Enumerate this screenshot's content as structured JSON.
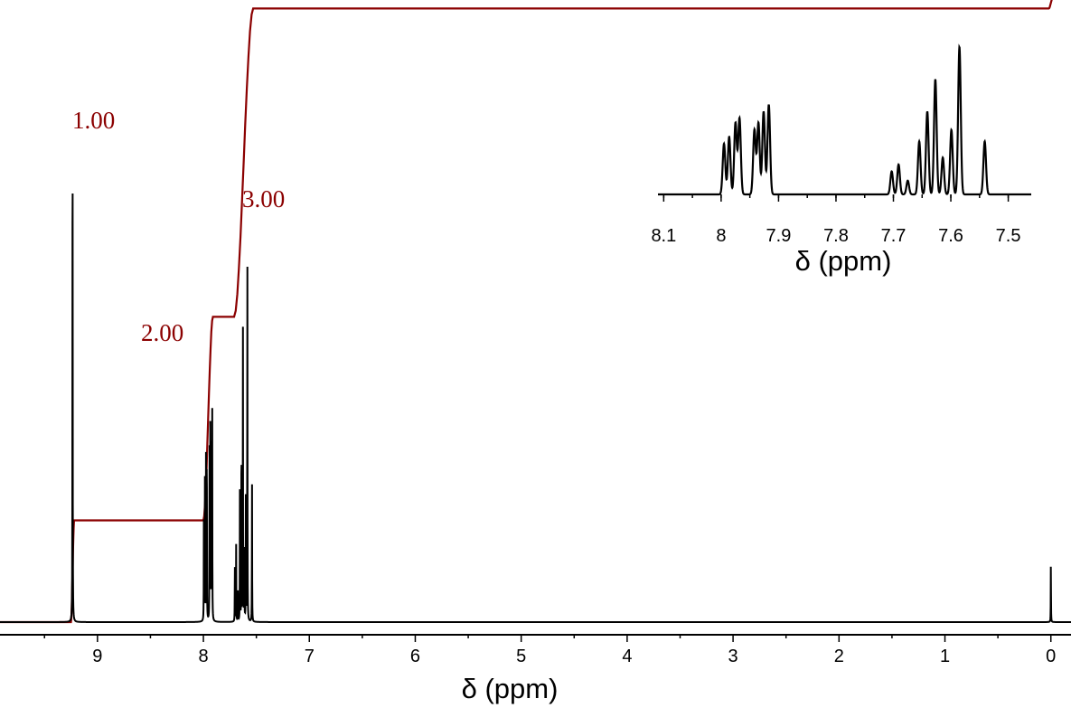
{
  "chart_data": [
    {
      "type": "line",
      "xlabel": "δ (ppm)",
      "ylabel": "",
      "xlim": [
        9.92,
        -0.19
      ],
      "x_reversed": true,
      "x_ticks": [
        "9",
        "8",
        "7",
        "6",
        "5",
        "4",
        "3",
        "2",
        "1",
        "0"
      ],
      "grid": false,
      "colors": {
        "spectrum": "#000000",
        "integral": "#8b0000"
      },
      "peaks": [
        {
          "shift": 9.235,
          "height": 1.0
        },
        {
          "shift": 7.995,
          "height": 0.22
        },
        {
          "shift": 7.986,
          "height": 0.25
        },
        {
          "shift": 7.975,
          "height": 0.31
        },
        {
          "shift": 7.968,
          "height": 0.33
        },
        {
          "shift": 7.942,
          "height": 0.28
        },
        {
          "shift": 7.935,
          "height": 0.31
        },
        {
          "shift": 7.926,
          "height": 0.36
        },
        {
          "shift": 7.917,
          "height": 0.39
        },
        {
          "shift": 7.703,
          "height": 0.1
        },
        {
          "shift": 7.691,
          "height": 0.13
        },
        {
          "shift": 7.675,
          "height": 0.06
        },
        {
          "shift": 7.655,
          "height": 0.23
        },
        {
          "shift": 7.641,
          "height": 0.36
        },
        {
          "shift": 7.627,
          "height": 0.5
        },
        {
          "shift": 7.614,
          "height": 0.16
        },
        {
          "shift": 7.599,
          "height": 0.28
        },
        {
          "shift": 7.585,
          "height": 0.64
        },
        {
          "shift": 7.541,
          "height": 0.23
        },
        {
          "shift": 0.0,
          "height": 0.1
        }
      ],
      "integral": {
        "steps": [
          {
            "from": 9.25,
            "to": 9.22,
            "level_after": 0.165
          },
          {
            "from": 8.0,
            "to": 7.91,
            "level_after": 0.495
          },
          {
            "from": 7.71,
            "to": 7.53,
            "level_after": 0.995
          },
          {
            "from": 0.02,
            "to": -0.02,
            "level_after": 1.013
          }
        ],
        "labels": [
          "1.00",
          "2.00",
          "3.00"
        ]
      }
    },
    {
      "type": "line",
      "inset": true,
      "xlabel": "δ (ppm)",
      "xlim": [
        8.11,
        7.46
      ],
      "x_reversed": true,
      "x_ticks": [
        "8.1",
        "8",
        "7.9",
        "7.8",
        "7.7",
        "7.6",
        "7.5"
      ],
      "grid": false
    }
  ]
}
